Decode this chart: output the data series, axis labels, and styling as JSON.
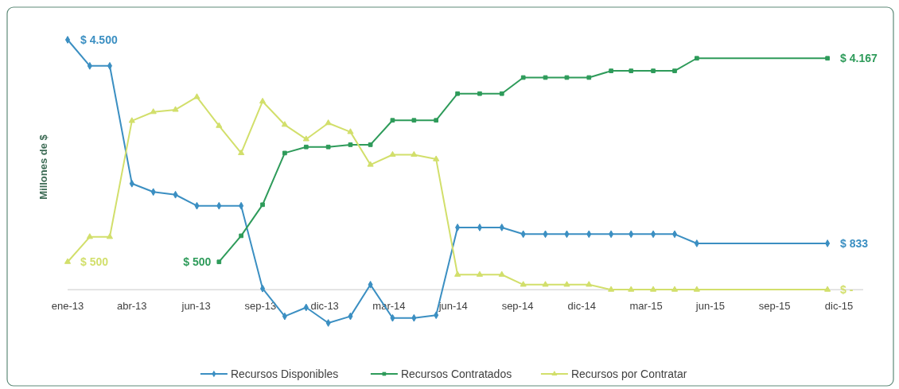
{
  "chart_data": {
    "type": "line",
    "ylabel": "Millones de $",
    "tick_labels": "x",
    "legend": "bottom",
    "x": [
      "2013-01",
      "2013-02",
      "2013-03",
      "2013-04",
      "2013-05",
      "2013-06",
      "2013-07",
      "2013-08",
      "2013-09",
      "2013-10",
      "2013-11",
      "2013-12",
      "2014-01",
      "2014-02",
      "2014-03",
      "2014-04",
      "2014-05",
      "2014-06",
      "2014-07",
      "2014-08",
      "2014-09",
      "2014-10",
      "2014-11",
      "2014-12",
      "2015-01",
      "2015-02",
      "2015-03",
      "2015-04",
      "2015-05",
      "2015-06",
      "2015-12"
    ],
    "xlim": [
      "2013-01-01",
      "2016-01-20"
    ],
    "xticks": [
      {
        "value": "2013-01-01",
        "label": "ene-13"
      },
      {
        "value": "2013-04-01",
        "label": "abr-13"
      },
      {
        "value": "2013-06-30",
        "label": "jun-13"
      },
      {
        "value": "2013-09-28",
        "label": "sep-13"
      },
      {
        "value": "2013-12-27",
        "label": "dic-13"
      },
      {
        "value": "2014-03-27",
        "label": "mar-14"
      },
      {
        "value": "2014-06-25",
        "label": "jun-14"
      },
      {
        "value": "2014-09-23",
        "label": "sep-14"
      },
      {
        "value": "2014-12-22",
        "label": "dic-14"
      },
      {
        "value": "2015-03-22",
        "label": "mar-15"
      },
      {
        "value": "2015-06-20",
        "label": "jun-15"
      },
      {
        "value": "2015-09-18",
        "label": "sep-15"
      },
      {
        "value": "2015-12-17",
        "label": "dic-15"
      }
    ],
    "series": [
      {
        "name": "Recursos Disponibles",
        "color": "#3b8fc2",
        "marker": "diamond",
        "values": [
          4500,
          4030,
          4030,
          1910,
          1760,
          1710,
          1510,
          1510,
          1510,
          20,
          -480,
          -320,
          -600,
          -480,
          90,
          -510,
          -510,
          -460,
          1120,
          1120,
          1120,
          1000,
          1000,
          1000,
          1000,
          1000,
          1000,
          1000,
          1000,
          833,
          833
        ],
        "value_labels": [
          "$ 4.500",
          null,
          null,
          null,
          null,
          null,
          null,
          null,
          null,
          null,
          null,
          null,
          null,
          null,
          null,
          null,
          null,
          null,
          null,
          null,
          null,
          null,
          null,
          null,
          null,
          null,
          null,
          null,
          null,
          null,
          "$ 833"
        ]
      },
      {
        "name": "Recursos Contratados",
        "color": "#2e9b5a",
        "marker": "square",
        "x": [
          "2013-08",
          "2013-09",
          "2013-10",
          "2013-11",
          "2013-12",
          "2014-01",
          "2014-02",
          "2014-03",
          "2014-04",
          "2014-05",
          "2014-06",
          "2014-07",
          "2014-08",
          "2014-09",
          "2014-10",
          "2014-11",
          "2014-12",
          "2015-01",
          "2015-02",
          "2015-03",
          "2015-04",
          "2015-05",
          "2015-06",
          "2015-12"
        ],
        "values": [
          500,
          970,
          1530,
          2460,
          2570,
          2570,
          2610,
          2610,
          3050,
          3050,
          3050,
          3530,
          3530,
          3530,
          3820,
          3820,
          3820,
          3820,
          3940,
          3940,
          3940,
          3940,
          4167,
          4167
        ],
        "value_labels": [
          "$ 500",
          null,
          null,
          null,
          null,
          null,
          null,
          null,
          null,
          null,
          null,
          null,
          null,
          null,
          null,
          null,
          null,
          null,
          null,
          null,
          null,
          null,
          null,
          "$ 4.167"
        ]
      },
      {
        "name": "Recursos por Contratar",
        "color": "#d2df6b",
        "marker": "triangle",
        "values": [
          500,
          950,
          950,
          3040,
          3200,
          3240,
          3470,
          2950,
          2460,
          3390,
          2970,
          2710,
          3000,
          2840,
          2250,
          2430,
          2430,
          2350,
          270,
          270,
          270,
          90,
          90,
          90,
          90,
          0,
          0,
          0,
          0,
          0,
          0
        ],
        "value_labels": [
          "$ 500",
          null,
          null,
          null,
          null,
          null,
          null,
          null,
          null,
          null,
          null,
          null,
          null,
          null,
          null,
          null,
          null,
          null,
          null,
          null,
          null,
          null,
          null,
          null,
          null,
          null,
          null,
          null,
          null,
          null,
          "$ -"
        ]
      }
    ]
  }
}
